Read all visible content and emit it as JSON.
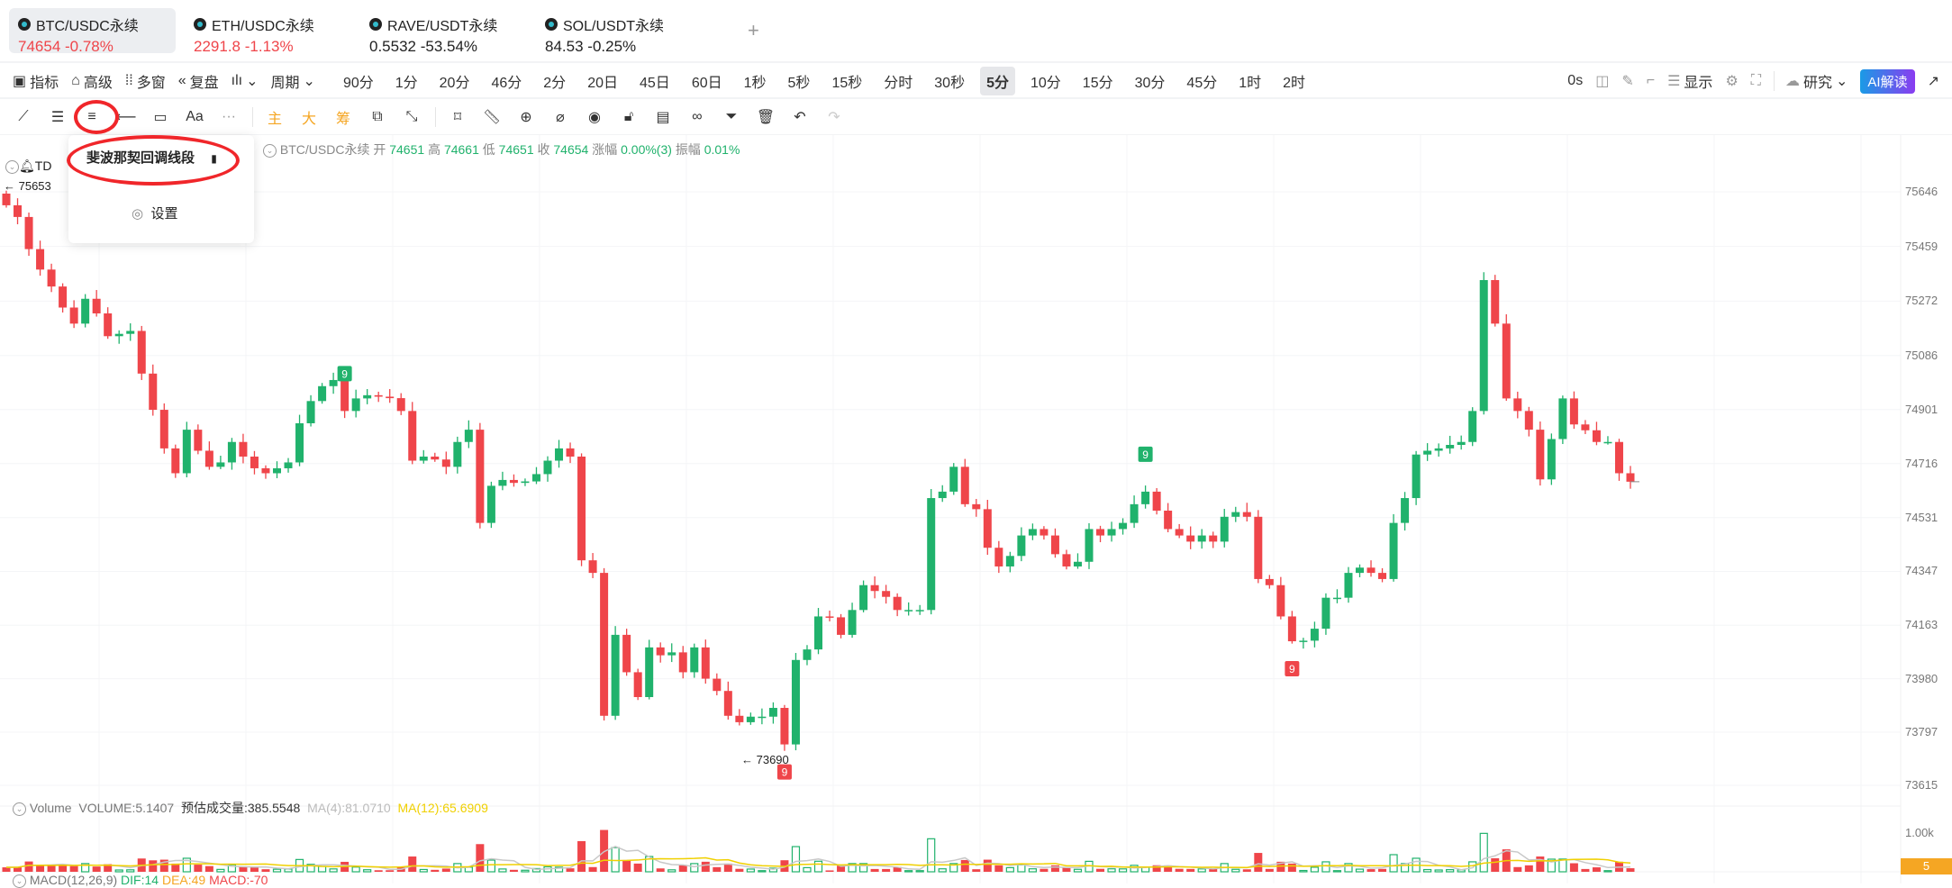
{
  "tabs": [
    {
      "name": "BTC/USDC永续",
      "price": "74654",
      "change": "-0.78%",
      "color": "red",
      "active": true
    },
    {
      "name": "ETH/USDC永续",
      "price": "2291.8",
      "change": "-1.13%",
      "color": "red",
      "active": false
    },
    {
      "name": "RAVE/USDT永续",
      "price": "0.5532",
      "change": "-53.54%",
      "color": "dark",
      "active": false
    },
    {
      "name": "SOL/USDT永续",
      "price": "84.53",
      "change": "-0.25%",
      "color": "dark",
      "active": false
    }
  ],
  "add_tab": "+",
  "toolbar": {
    "indicators": "指标",
    "advanced": "高级",
    "multi_window": "多窗",
    "replay": "复盘",
    "period": "周期",
    "periods": [
      "90分",
      "1分",
      "20分",
      "46分",
      "2分",
      "20日",
      "45日",
      "60日",
      "1秒",
      "5秒",
      "15秒",
      "分时",
      "30秒",
      "5分",
      "10分",
      "15分",
      "30分",
      "45分",
      "1时",
      "2时"
    ],
    "active_period": "5分",
    "countdown": "0s",
    "display": "显示",
    "research": "研究",
    "ai": "AI解读"
  },
  "drawing_tools": {
    "main": "主",
    "big": "大",
    "chips": "筹",
    "text": "Aa",
    "more": "···"
  },
  "popup": {
    "item": "斐波那契回调线段",
    "settings": "设置"
  },
  "legend": {
    "symbol": "BTC/USDC永续",
    "open_label": "开",
    "open": "74651",
    "high_label": "高",
    "high": "74661",
    "low_label": "低",
    "low": "74651",
    "close_label": "收",
    "close": "74654",
    "chg_label": "涨幅",
    "chg": "0.00%(3)",
    "amp_label": "振幅",
    "amp": "0.01%",
    "td": "TD"
  },
  "annotations": {
    "high": "← 75653",
    "low": "← 73690"
  },
  "price_axis": [
    "75646",
    "75459",
    "75272",
    "75086",
    "74901",
    "74716",
    "74531",
    "74347",
    "74163",
    "73980",
    "73797",
    "73615"
  ],
  "volume": {
    "title": "Volume",
    "value": "VOLUME:5.1407",
    "est": "预估成交量:385.5548",
    "ma4": "MA(4):81.0710",
    "ma12": "MA(12):65.6909",
    "axis": "1.00k",
    "current": "5"
  },
  "macd": {
    "title": "MACD(12,26,9)",
    "dif": "DIF:14",
    "dea": "DEA:49",
    "macd": "MACD:-70"
  },
  "colors": {
    "up": "#20b26c",
    "down": "#ef454a",
    "accent": "#f5a623"
  },
  "chart_data": {
    "type": "candlestick",
    "ylim": [
      73615,
      75646
    ],
    "closes": [
      75600,
      75560,
      75450,
      75380,
      75322,
      75250,
      75195,
      75280,
      75230,
      75152,
      75160,
      75170,
      75024,
      74900,
      74768,
      74683,
      74832,
      74760,
      74705,
      74720,
      74790,
      74740,
      74700,
      74683,
      74700,
      74720,
      74854,
      74930,
      74981,
      75002,
      74896,
      74939,
      74950,
      74945,
      74940,
      74896,
      74726,
      74740,
      74730,
      74705,
      74790,
      74832,
      74513,
      74640,
      74660,
      74650,
      74655,
      74680,
      74726,
      74768,
      74740,
      74385,
      74342,
      73853,
      74130,
      74002,
      73917,
      74087,
      74060,
      74070,
      74002,
      74087,
      73980,
      73938,
      73853,
      73831,
      73850,
      73850,
      73880,
      73755,
      74044,
      74080,
      74193,
      74190,
      74130,
      74215,
      74300,
      74280,
      74260,
      74215,
      74215,
      74215,
      74598,
      74620,
      74705,
      74577,
      74560,
      74428,
      74364,
      74400,
      74470,
      74492,
      74470,
      74406,
      74364,
      74380,
      74492,
      74470,
      74492,
      74513,
      74577,
      74620,
      74555,
      74492,
      74470,
      74449,
      74470,
      74449,
      74534,
      74550,
      74534,
      74321,
      74300,
      74193,
      74108,
      74110,
      74151,
      74257,
      74257,
      74342,
      74360,
      74342,
      74321,
      74513,
      74598,
      74747,
      74760,
      74768,
      74780,
      74790,
      74896,
      75344,
      75195,
      74939,
      74896,
      74832,
      74662,
      74800,
      74939,
      74850,
      74830,
      74790,
      74790,
      74683,
      74654
    ],
    "td_markers": [
      {
        "index": 30,
        "label": "9",
        "side": "above",
        "color": "up"
      },
      {
        "index": 69,
        "label": "9",
        "side": "below",
        "color": "down"
      },
      {
        "index": 101,
        "label": "9",
        "side": "above",
        "color": "up"
      },
      {
        "index": 114,
        "label": "9",
        "side": "below",
        "color": "down"
      }
    ]
  }
}
